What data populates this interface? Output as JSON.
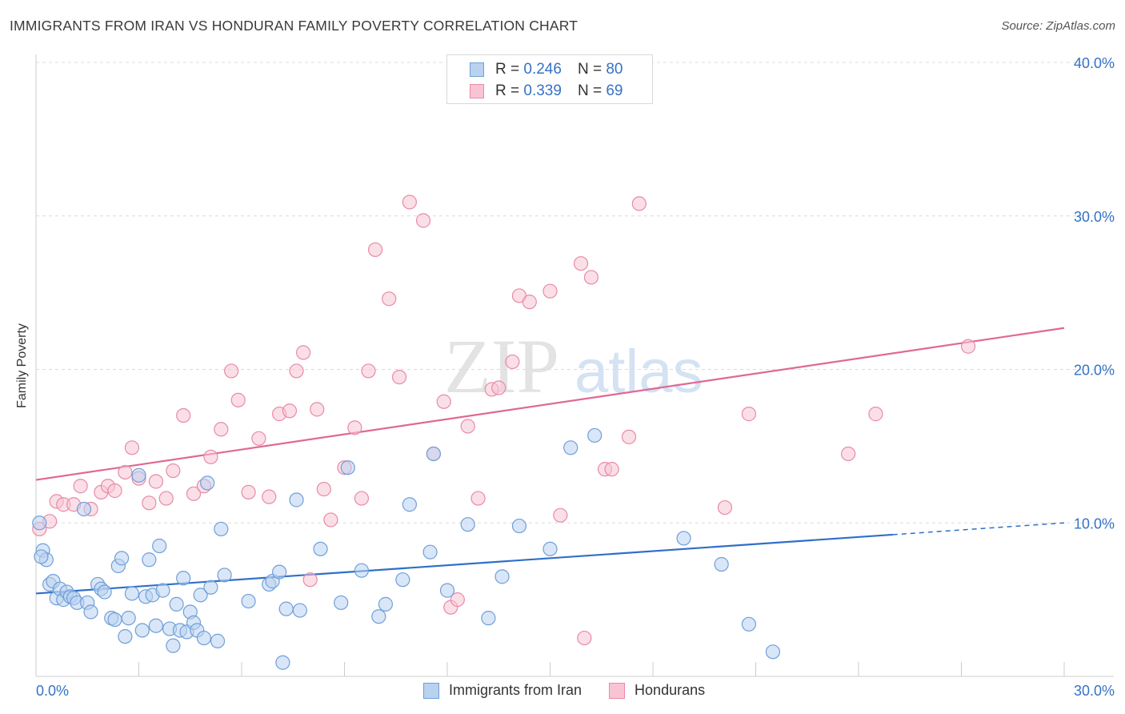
{
  "title": "IMMIGRANTS FROM IRAN VS HONDURAN FAMILY POVERTY CORRELATION CHART",
  "source": "Source: ZipAtlas.com",
  "watermark": {
    "zip": "ZIP",
    "atlas": "atlas"
  },
  "legend": {
    "r_label": "R =",
    "n_label": "N =",
    "series": [
      {
        "r": "0.246",
        "n": "80"
      },
      {
        "r": "0.339",
        "n": "69"
      }
    ]
  },
  "chart_data": {
    "type": "scatter",
    "title": "IMMIGRANTS FROM IRAN VS HONDURAN FAMILY POVERTY CORRELATION CHART",
    "xlabel": "",
    "ylabel": "Family Poverty",
    "xlim": [
      0,
      30
    ],
    "ylim": [
      0,
      40
    ],
    "x_tick_labels": [
      "0.0%",
      "30.0%"
    ],
    "y_ticks": [
      10,
      20,
      30,
      40
    ],
    "y_tick_labels": [
      "10.0%",
      "20.0%",
      "30.0%",
      "40.0%"
    ],
    "grid": true,
    "colors": {
      "iran_fill": "#b9d2f0",
      "iran_stroke": "#6f9fd8",
      "iran_line": "#2f6fc8",
      "hond_fill": "#f8c4d3",
      "hond_stroke": "#e88aa8",
      "hond_line": "#e06894",
      "tick_label": "#3572c6"
    },
    "series": [
      {
        "name": "Immigrants from Iran",
        "trend": {
          "x0": 0,
          "y0": 5.4,
          "x1": 30,
          "y1": 10.0,
          "solid_until_x": 25.0
        },
        "points": [
          [
            0.1,
            10.0
          ],
          [
            0.2,
            8.2
          ],
          [
            0.3,
            7.6
          ],
          [
            0.4,
            6.0
          ],
          [
            0.5,
            6.2
          ],
          [
            0.6,
            5.1
          ],
          [
            0.7,
            5.7
          ],
          [
            0.8,
            5.0
          ],
          [
            0.9,
            5.5
          ],
          [
            1.0,
            5.2
          ],
          [
            1.1,
            5.1
          ],
          [
            1.2,
            4.8
          ],
          [
            1.4,
            10.9
          ],
          [
            1.5,
            4.8
          ],
          [
            1.6,
            4.2
          ],
          [
            1.8,
            6.0
          ],
          [
            1.9,
            5.7
          ],
          [
            2.0,
            5.5
          ],
          [
            2.2,
            3.8
          ],
          [
            2.3,
            3.7
          ],
          [
            2.4,
            7.2
          ],
          [
            2.5,
            7.7
          ],
          [
            2.6,
            2.6
          ],
          [
            2.7,
            3.8
          ],
          [
            2.8,
            5.4
          ],
          [
            3.0,
            13.1
          ],
          [
            3.1,
            3.0
          ],
          [
            3.2,
            5.2
          ],
          [
            3.3,
            7.6
          ],
          [
            3.4,
            5.3
          ],
          [
            3.5,
            3.3
          ],
          [
            3.6,
            8.5
          ],
          [
            3.7,
            5.6
          ],
          [
            3.9,
            3.1
          ],
          [
            4.0,
            2.0
          ],
          [
            4.1,
            4.7
          ],
          [
            4.2,
            3.0
          ],
          [
            4.3,
            6.4
          ],
          [
            4.4,
            2.9
          ],
          [
            4.5,
            4.2
          ],
          [
            4.6,
            3.5
          ],
          [
            4.7,
            3.0
          ],
          [
            4.8,
            5.3
          ],
          [
            4.9,
            2.5
          ],
          [
            5.0,
            12.6
          ],
          [
            5.1,
            5.8
          ],
          [
            5.3,
            2.3
          ],
          [
            5.4,
            9.6
          ],
          [
            5.5,
            6.6
          ],
          [
            6.2,
            4.9
          ],
          [
            6.8,
            6.0
          ],
          [
            6.9,
            6.2
          ],
          [
            7.1,
            6.8
          ],
          [
            7.2,
            0.9
          ],
          [
            7.3,
            4.4
          ],
          [
            7.6,
            11.5
          ],
          [
            7.7,
            4.3
          ],
          [
            8.3,
            8.3
          ],
          [
            8.9,
            4.8
          ],
          [
            9.1,
            13.6
          ],
          [
            9.5,
            6.9
          ],
          [
            10.0,
            3.9
          ],
          [
            10.2,
            4.7
          ],
          [
            10.7,
            6.3
          ],
          [
            10.9,
            11.2
          ],
          [
            11.5,
            8.1
          ],
          [
            11.6,
            14.5
          ],
          [
            12.0,
            5.6
          ],
          [
            12.6,
            9.9
          ],
          [
            13.2,
            3.8
          ],
          [
            13.6,
            6.5
          ],
          [
            14.1,
            9.8
          ],
          [
            15.0,
            8.3
          ],
          [
            15.6,
            14.9
          ],
          [
            16.3,
            15.7
          ],
          [
            18.9,
            9.0
          ],
          [
            20.0,
            7.3
          ],
          [
            20.8,
            3.4
          ],
          [
            21.5,
            1.6
          ],
          [
            0.15,
            7.8
          ]
        ]
      },
      {
        "name": "Hondurans",
        "trend": {
          "x0": 0,
          "y0": 12.8,
          "x1": 30,
          "y1": 22.7,
          "solid_until_x": 30
        },
        "points": [
          [
            0.1,
            9.6
          ],
          [
            0.4,
            10.1
          ],
          [
            0.6,
            11.4
          ],
          [
            0.8,
            11.2
          ],
          [
            1.1,
            11.2
          ],
          [
            1.3,
            12.4
          ],
          [
            1.6,
            10.9
          ],
          [
            1.9,
            12.0
          ],
          [
            2.1,
            12.4
          ],
          [
            2.3,
            12.1
          ],
          [
            2.6,
            13.3
          ],
          [
            2.8,
            14.9
          ],
          [
            3.0,
            12.9
          ],
          [
            3.3,
            11.3
          ],
          [
            3.5,
            12.7
          ],
          [
            3.8,
            11.6
          ],
          [
            4.0,
            13.4
          ],
          [
            4.3,
            17.0
          ],
          [
            4.6,
            11.9
          ],
          [
            4.9,
            12.4
          ],
          [
            5.1,
            14.3
          ],
          [
            5.4,
            16.1
          ],
          [
            5.7,
            19.9
          ],
          [
            5.9,
            18.0
          ],
          [
            6.2,
            12.0
          ],
          [
            6.5,
            15.5
          ],
          [
            6.8,
            11.7
          ],
          [
            7.1,
            17.1
          ],
          [
            7.4,
            17.3
          ],
          [
            7.6,
            19.9
          ],
          [
            7.8,
            21.1
          ],
          [
            8.0,
            6.3
          ],
          [
            8.2,
            17.4
          ],
          [
            8.4,
            12.2
          ],
          [
            8.6,
            10.2
          ],
          [
            9.0,
            13.6
          ],
          [
            9.3,
            16.2
          ],
          [
            9.5,
            11.6
          ],
          [
            9.7,
            19.9
          ],
          [
            9.9,
            27.8
          ],
          [
            10.3,
            24.6
          ],
          [
            10.6,
            19.5
          ],
          [
            10.9,
            30.9
          ],
          [
            11.3,
            29.7
          ],
          [
            11.6,
            14.5
          ],
          [
            11.9,
            17.9
          ],
          [
            12.1,
            4.5
          ],
          [
            12.3,
            5.0
          ],
          [
            12.6,
            16.3
          ],
          [
            12.9,
            11.6
          ],
          [
            13.3,
            18.7
          ],
          [
            13.5,
            18.8
          ],
          [
            13.9,
            20.5
          ],
          [
            14.1,
            24.8
          ],
          [
            14.4,
            24.4
          ],
          [
            15.0,
            25.1
          ],
          [
            15.3,
            10.5
          ],
          [
            15.9,
            26.9
          ],
          [
            16.0,
            2.5
          ],
          [
            16.2,
            26.0
          ],
          [
            16.6,
            13.5
          ],
          [
            16.8,
            13.5
          ],
          [
            17.3,
            15.6
          ],
          [
            17.6,
            30.8
          ],
          [
            20.1,
            11.0
          ],
          [
            20.8,
            17.1
          ],
          [
            23.7,
            14.5
          ],
          [
            24.5,
            17.1
          ],
          [
            27.2,
            21.5
          ]
        ]
      }
    ]
  },
  "bottom_legend": [
    {
      "label": "Immigrants from Iran"
    },
    {
      "label": "Hondurans"
    }
  ]
}
